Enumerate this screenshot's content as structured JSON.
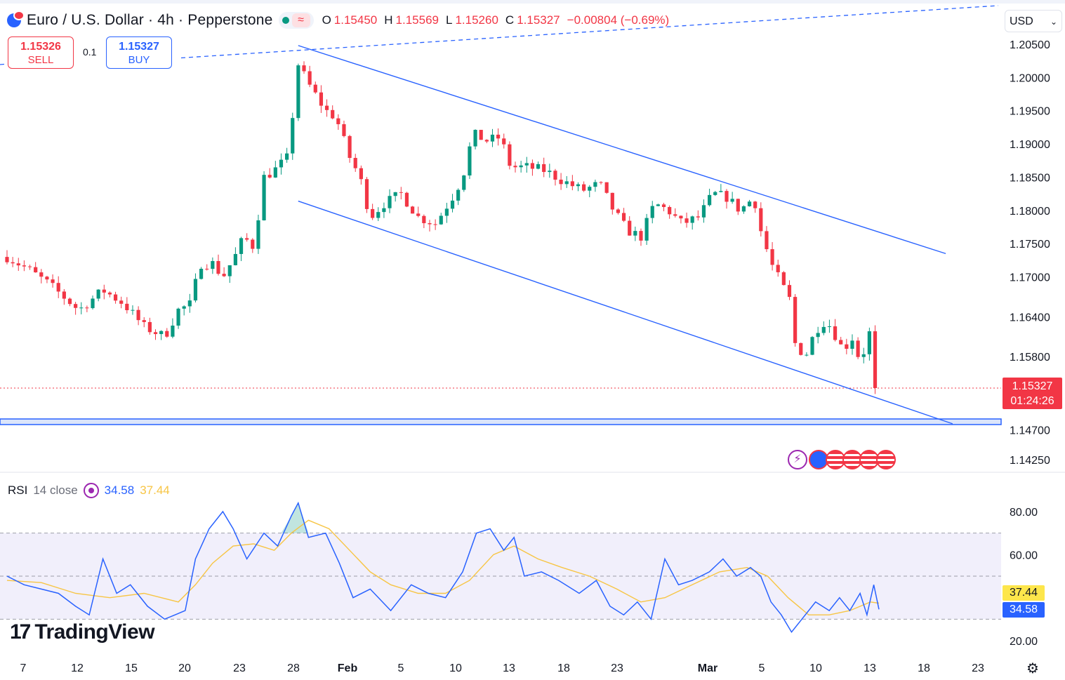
{
  "header": {
    "title": "Euro / U.S. Dollar · 4h · Pepperstone",
    "ohlc": [
      {
        "label": "O",
        "value": "1.15450"
      },
      {
        "label": "H",
        "value": "1.15569"
      },
      {
        "label": "L",
        "value": "1.15260"
      },
      {
        "label": "C",
        "value": "1.15327"
      }
    ],
    "change": "−0.00804 (−0.69%)",
    "wave_icon": "≈"
  },
  "trade": {
    "sell_price": "1.15326",
    "sell_label": "SELL",
    "buy_price": "1.15327",
    "buy_label": "BUY",
    "spread": "0.1"
  },
  "currency": {
    "selected": "USD",
    "chevron": "⌄"
  },
  "last_price": {
    "price": "1.15327",
    "countdown": "01:24:26"
  },
  "rsi": {
    "name": "RSI",
    "params": "14 close",
    "value": "34.58",
    "ma_value": "37.44"
  },
  "branding": {
    "logo_mark": "17",
    "logo_text": "TradingView"
  },
  "event_icons": [
    "lightning-icon",
    "eu-flag-icon",
    "us-flag-icon",
    "us-flag-icon",
    "us-flag-icon",
    "us-flag-icon"
  ],
  "colors": {
    "bull": "#089981",
    "bear": "#f23645",
    "channel": "#2962ff",
    "rsi_line": "#2962ff",
    "rsi_ma": "#f7c544",
    "rsi_band": "#e6e1f7",
    "price_tag": "#f23645"
  },
  "chart_data": {
    "type": "candlestick",
    "timeframe": "4h",
    "price_axis": {
      "ticks": [
        "1.20500",
        "1.20000",
        "1.19500",
        "1.19000",
        "1.18500",
        "1.18000",
        "1.17500",
        "1.17000",
        "1.16400",
        "1.15800",
        "1.14700",
        "1.14250"
      ]
    },
    "time_axis": {
      "ticks": [
        "7",
        "12",
        "15",
        "20",
        "23",
        "28",
        "Feb",
        "5",
        "10",
        "13",
        "18",
        "23",
        "Mar",
        "5",
        "10",
        "13",
        "18",
        "23"
      ]
    },
    "trend": [
      {
        "t": 0,
        "p": 1.173
      },
      {
        "t": 0.6,
        "p": 1.1712
      },
      {
        "t": 1.2,
        "p": 1.169
      },
      {
        "t": 2.1,
        "p": 1.165
      },
      {
        "t": 2.8,
        "p": 1.168
      },
      {
        "t": 3.4,
        "p": 1.166
      },
      {
        "t": 4.0,
        "p": 1.1625
      },
      {
        "t": 4.6,
        "p": 1.161
      },
      {
        "t": 5.0,
        "p": 1.165
      },
      {
        "t": 5.4,
        "p": 1.166
      },
      {
        "t": 5.6,
        "p": 1.172
      },
      {
        "t": 6.0,
        "p": 1.172
      },
      {
        "t": 6.3,
        "p": 1.17
      },
      {
        "t": 6.7,
        "p": 1.1735
      },
      {
        "t": 6.9,
        "p": 1.176
      },
      {
        "t": 7.2,
        "p": 1.1745
      },
      {
        "t": 7.5,
        "p": 1.185
      },
      {
        "t": 7.8,
        "p": 1.186
      },
      {
        "t": 8.2,
        "p": 1.188
      },
      {
        "t": 8.5,
        "p": 1.202
      },
      {
        "t": 8.8,
        "p": 1.199
      },
      {
        "t": 9.3,
        "p": 1.195
      },
      {
        "t": 9.6,
        "p": 1.194
      },
      {
        "t": 10.0,
        "p": 1.188
      },
      {
        "t": 10.3,
        "p": 1.185
      },
      {
        "t": 10.6,
        "p": 1.179
      },
      {
        "t": 11.0,
        "p": 1.181
      },
      {
        "t": 11.5,
        "p": 1.1825
      },
      {
        "t": 12.0,
        "p": 1.179
      },
      {
        "t": 12.5,
        "p": 1.178
      },
      {
        "t": 13.0,
        "p": 1.182
      },
      {
        "t": 13.3,
        "p": 1.185
      },
      {
        "t": 13.6,
        "p": 1.1915
      },
      {
        "t": 14.0,
        "p": 1.1905
      },
      {
        "t": 14.4,
        "p": 1.191
      },
      {
        "t": 14.7,
        "p": 1.1865
      },
      {
        "t": 15.2,
        "p": 1.1865
      },
      {
        "t": 15.7,
        "p": 1.186
      },
      {
        "t": 16.2,
        "p": 1.1845
      },
      {
        "t": 16.8,
        "p": 1.183
      },
      {
        "t": 17.3,
        "p": 1.184
      },
      {
        "t": 17.7,
        "p": 1.18
      },
      {
        "t": 18.1,
        "p": 1.177
      },
      {
        "t": 18.5,
        "p": 1.176
      },
      {
        "t": 18.9,
        "p": 1.181
      },
      {
        "t": 19.3,
        "p": 1.18
      },
      {
        "t": 19.7,
        "p": 1.178
      },
      {
        "t": 20.2,
        "p": 1.179
      },
      {
        "t": 20.6,
        "p": 1.1825
      },
      {
        "t": 21.0,
        "p": 1.182
      },
      {
        "t": 21.4,
        "p": 1.18
      },
      {
        "t": 21.8,
        "p": 1.182
      },
      {
        "t": 22.0,
        "p": 1.177
      },
      {
        "t": 22.3,
        "p": 1.172
      },
      {
        "t": 22.6,
        "p": 1.169
      },
      {
        "t": 22.9,
        "p": 1.166
      },
      {
        "t": 23.0,
        "p": 1.16
      },
      {
        "t": 23.3,
        "p": 1.158
      },
      {
        "t": 23.6,
        "p": 1.162
      },
      {
        "t": 23.9,
        "p": 1.1635
      },
      {
        "t": 24.1,
        "p": 1.162
      },
      {
        "t": 24.4,
        "p": 1.159
      },
      {
        "t": 24.7,
        "p": 1.161
      },
      {
        "t": 24.9,
        "p": 1.157
      },
      {
        "t": 25.2,
        "p": 1.162
      },
      {
        "t": 25.4,
        "p": 1.1533
      }
    ],
    "channel": {
      "upper": [
        {
          "t": 8.5,
          "p": 1.2048
        },
        {
          "t": 27.4,
          "p": 1.1735
        }
      ],
      "lower": [
        {
          "t": 8.5,
          "p": 1.1814
        },
        {
          "t": 27.6,
          "p": 1.1479
        }
      ]
    },
    "horizontal_level": 1.1482,
    "dashed_trendline": [
      {
        "t": 0,
        "p": 1.204
      },
      {
        "t": 33,
        "p": 1.2098
      }
    ],
    "last_price": 1.15327,
    "rsi": {
      "ticks": [
        "80.00",
        "60.00",
        "20.00"
      ],
      "overbought": 70,
      "mid": 50,
      "oversold": 30,
      "line": [
        {
          "t": 0,
          "v": 50
        },
        {
          "t": 0.5,
          "v": 46
        },
        {
          "t": 1,
          "v": 44
        },
        {
          "t": 1.5,
          "v": 42
        },
        {
          "t": 2,
          "v": 36
        },
        {
          "t": 2.4,
          "v": 32
        },
        {
          "t": 2.8,
          "v": 58
        },
        {
          "t": 3.2,
          "v": 42
        },
        {
          "t": 3.6,
          "v": 46
        },
        {
          "t": 4.1,
          "v": 36
        },
        {
          "t": 4.6,
          "v": 30
        },
        {
          "t": 5.2,
          "v": 34
        },
        {
          "t": 5.5,
          "v": 58
        },
        {
          "t": 5.9,
          "v": 72
        },
        {
          "t": 6.3,
          "v": 80
        },
        {
          "t": 6.6,
          "v": 72
        },
        {
          "t": 7.0,
          "v": 58
        },
        {
          "t": 7.5,
          "v": 70
        },
        {
          "t": 7.9,
          "v": 64
        },
        {
          "t": 8.3,
          "v": 78
        },
        {
          "t": 8.5,
          "v": 84
        },
        {
          "t": 8.8,
          "v": 68
        },
        {
          "t": 9.3,
          "v": 70
        },
        {
          "t": 9.7,
          "v": 56
        },
        {
          "t": 10.1,
          "v": 40
        },
        {
          "t": 10.6,
          "v": 44
        },
        {
          "t": 11.2,
          "v": 34
        },
        {
          "t": 11.8,
          "v": 46
        },
        {
          "t": 12.3,
          "v": 42
        },
        {
          "t": 12.8,
          "v": 40
        },
        {
          "t": 13.3,
          "v": 52
        },
        {
          "t": 13.7,
          "v": 70
        },
        {
          "t": 14.1,
          "v": 72
        },
        {
          "t": 14.5,
          "v": 62
        },
        {
          "t": 14.8,
          "v": 68
        },
        {
          "t": 15.1,
          "v": 50
        },
        {
          "t": 15.6,
          "v": 52
        },
        {
          "t": 16.1,
          "v": 48
        },
        {
          "t": 16.7,
          "v": 42
        },
        {
          "t": 17.2,
          "v": 48
        },
        {
          "t": 17.6,
          "v": 36
        },
        {
          "t": 18.0,
          "v": 32
        },
        {
          "t": 18.4,
          "v": 38
        },
        {
          "t": 18.8,
          "v": 30
        },
        {
          "t": 19.2,
          "v": 58
        },
        {
          "t": 19.6,
          "v": 46
        },
        {
          "t": 20.0,
          "v": 48
        },
        {
          "t": 20.5,
          "v": 52
        },
        {
          "t": 20.9,
          "v": 58
        },
        {
          "t": 21.3,
          "v": 50
        },
        {
          "t": 21.7,
          "v": 54
        },
        {
          "t": 22.0,
          "v": 50
        },
        {
          "t": 22.3,
          "v": 38
        },
        {
          "t": 22.6,
          "v": 32
        },
        {
          "t": 22.9,
          "v": 24
        },
        {
          "t": 23.2,
          "v": 30
        },
        {
          "t": 23.6,
          "v": 38
        },
        {
          "t": 24.0,
          "v": 34
        },
        {
          "t": 24.3,
          "v": 40
        },
        {
          "t": 24.6,
          "v": 34
        },
        {
          "t": 24.9,
          "v": 42
        },
        {
          "t": 25.1,
          "v": 32
        },
        {
          "t": 25.3,
          "v": 46
        },
        {
          "t": 25.45,
          "v": 34.58
        }
      ],
      "ma": [
        {
          "t": 0,
          "v": 48
        },
        {
          "t": 1,
          "v": 47
        },
        {
          "t": 2,
          "v": 42
        },
        {
          "t": 3,
          "v": 40
        },
        {
          "t": 4,
          "v": 42
        },
        {
          "t": 5,
          "v": 38
        },
        {
          "t": 5.5,
          "v": 46
        },
        {
          "t": 6,
          "v": 56
        },
        {
          "t": 6.6,
          "v": 64
        },
        {
          "t": 7.2,
          "v": 65
        },
        {
          "t": 7.8,
          "v": 62
        },
        {
          "t": 8.3,
          "v": 70
        },
        {
          "t": 8.8,
          "v": 76
        },
        {
          "t": 9.4,
          "v": 72
        },
        {
          "t": 10,
          "v": 62
        },
        {
          "t": 10.6,
          "v": 52
        },
        {
          "t": 11.2,
          "v": 46
        },
        {
          "t": 12,
          "v": 42
        },
        {
          "t": 12.8,
          "v": 42
        },
        {
          "t": 13.5,
          "v": 48
        },
        {
          "t": 14.2,
          "v": 60
        },
        {
          "t": 14.8,
          "v": 64
        },
        {
          "t": 15.5,
          "v": 58
        },
        {
          "t": 16.2,
          "v": 54
        },
        {
          "t": 17,
          "v": 50
        },
        {
          "t": 17.8,
          "v": 44
        },
        {
          "t": 18.5,
          "v": 38
        },
        {
          "t": 19.2,
          "v": 40
        },
        {
          "t": 20,
          "v": 46
        },
        {
          "t": 20.8,
          "v": 52
        },
        {
          "t": 21.6,
          "v": 54
        },
        {
          "t": 22.2,
          "v": 50
        },
        {
          "t": 22.8,
          "v": 40
        },
        {
          "t": 23.4,
          "v": 32
        },
        {
          "t": 24,
          "v": 32
        },
        {
          "t": 24.6,
          "v": 34
        },
        {
          "t": 25.2,
          "v": 38
        },
        {
          "t": 25.45,
          "v": 37.44
        }
      ]
    }
  }
}
